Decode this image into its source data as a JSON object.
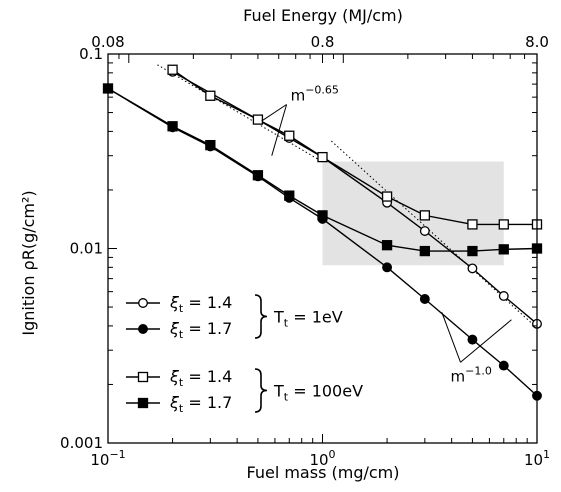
{
  "chart_data": {
    "type": "line",
    "xlabel": "Fuel mass (mg/cm)",
    "x2label": "Fuel Energy (MJ/cm)",
    "ylabel": "Ignition ρR(g/cm²)",
    "x_scale": "log",
    "y_scale": "log",
    "xlim": [
      0.1,
      10
    ],
    "ylim": [
      0.001,
      0.1
    ],
    "x2lim": [
      0.08,
      8.0
    ],
    "x_ticks": [
      {
        "value": 0.1,
        "base": "10",
        "exp": "−1"
      },
      {
        "value": 1,
        "base": "10",
        "exp": "0"
      },
      {
        "value": 10,
        "base": "10",
        "exp": "1"
      }
    ],
    "x2_ticks": [
      {
        "value": 0.08,
        "label": "0.08"
      },
      {
        "value": 0.8,
        "label": "0.8"
      },
      {
        "value": 8.0,
        "label": "8.0"
      }
    ],
    "y_ticks": [
      {
        "value": 0.1,
        "label": "0.1"
      },
      {
        "value": 0.01,
        "label": "0.01"
      },
      {
        "value": 0.001,
        "label": "0.001"
      }
    ],
    "series": [
      {
        "name": "ξt = 1.4, Tt = 1eV",
        "marker": "open-circle",
        "x": [
          0.2,
          0.5,
          0.7,
          1.0,
          2.0,
          3.0,
          5.0,
          7.0,
          10.0
        ],
        "y": [
          0.081,
          0.046,
          0.037,
          0.0295,
          0.0172,
          0.0123,
          0.0079,
          0.0057,
          0.0041
        ]
      },
      {
        "name": "ξt = 1.7, Tt = 1eV",
        "marker": "filled-circle",
        "x": [
          0.1,
          0.2,
          0.3,
          0.5,
          0.7,
          1.0,
          2.0,
          3.0,
          5.0,
          7.0,
          10.0
        ],
        "y": [
          0.0665,
          0.042,
          0.0335,
          0.0235,
          0.0182,
          0.0142,
          0.008,
          0.0055,
          0.0034,
          0.0025,
          0.00175
        ]
      },
      {
        "name": "ξt = 1.4, Tt = 100eV",
        "marker": "open-square",
        "x": [
          0.2,
          0.3,
          0.5,
          0.7,
          1.0,
          2.0,
          3.0,
          5.0,
          7.0,
          10.0
        ],
        "y": [
          0.083,
          0.061,
          0.046,
          0.038,
          0.0295,
          0.0185,
          0.0148,
          0.0133,
          0.0133,
          0.0133
        ]
      },
      {
        "name": "ξt = 1.7, Tt = 100eV",
        "marker": "filled-square",
        "x": [
          0.1,
          0.2,
          0.3,
          0.5,
          0.7,
          1.0,
          2.0,
          3.0,
          5.0,
          7.0,
          10.0
        ],
        "y": [
          0.0665,
          0.0425,
          0.034,
          0.0238,
          0.0187,
          0.0148,
          0.0104,
          0.0097,
          0.0097,
          0.0099,
          0.01
        ]
      }
    ],
    "reference_lines": [
      {
        "label_base": "m",
        "label_exp": "−0.65",
        "x": [
          0.17,
          1.0
        ],
        "y": [
          0.088,
          0.0279
        ]
      },
      {
        "label_base": "m",
        "label_exp": "−1.0",
        "x": [
          1.1,
          10.0
        ],
        "y": [
          0.0357,
          0.0039
        ]
      }
    ],
    "shaded_region": {
      "x": [
        1.0,
        7.0
      ],
      "y": [
        0.0082,
        0.028
      ]
    },
    "legend": {
      "placement": "bottom-left",
      "entries": [
        {
          "xi": "ξ",
          "sub": "t",
          "value": "= 1.4",
          "marker": "open-circle"
        },
        {
          "xi": "ξ",
          "sub": "t",
          "value": "= 1.7",
          "marker": "filled-circle"
        },
        {
          "xi": "ξ",
          "sub": "t",
          "value": "= 1.4",
          "marker": "open-square"
        },
        {
          "xi": "ξ",
          "sub": "t",
          "value": "= 1.7",
          "marker": "filled-square"
        }
      ],
      "groups": [
        {
          "T": "T",
          "sub": "t",
          "value": "= 1eV"
        },
        {
          "T": "T",
          "sub": "t",
          "value": "= 100eV"
        }
      ]
    }
  }
}
